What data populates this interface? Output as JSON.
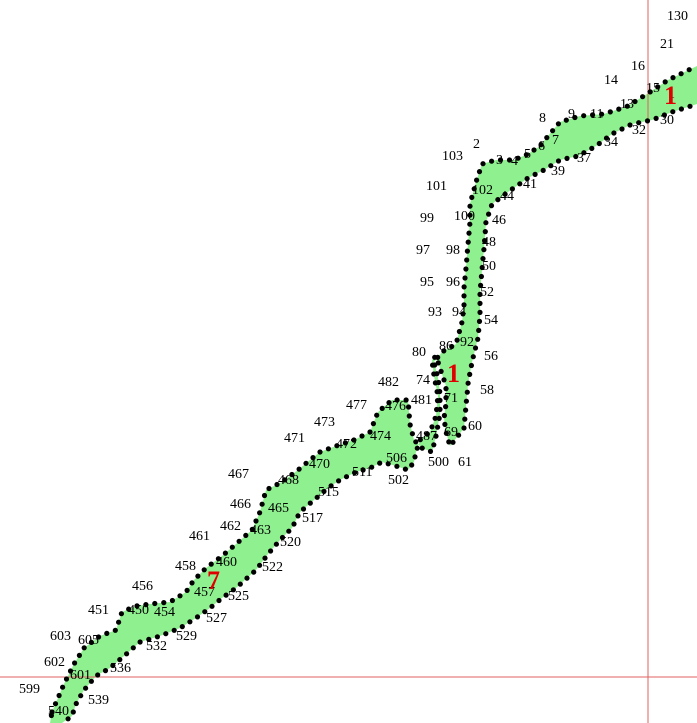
{
  "colors": {
    "region_fill": "#8ff08f",
    "guide_line": "#e06060",
    "point": "#000000",
    "marker": "#e00000"
  },
  "markers": [
    "1",
    "1",
    "7"
  ],
  "point_labels": [
    "130",
    "21",
    "16",
    "14",
    "15",
    "1",
    "30",
    "13",
    "11",
    "9",
    "8",
    "32",
    "34",
    "7",
    "6",
    "5",
    "4",
    "3",
    "2",
    "103",
    "37",
    "39",
    "41",
    "44",
    "102",
    "101",
    "100",
    "46",
    "99",
    "48",
    "98",
    "97",
    "50",
    "96",
    "95",
    "52",
    "94",
    "93",
    "54",
    "92",
    "86",
    "80",
    "56",
    "74",
    "58",
    "481",
    "482",
    "477",
    "476",
    "71",
    "473",
    "474",
    "472",
    "471",
    "487",
    "69",
    "60",
    "506",
    "500",
    "61",
    "470",
    "511",
    "502",
    "467",
    "468",
    "515",
    "466",
    "465",
    "517",
    "462",
    "463",
    "520",
    "461",
    "460",
    "458",
    "522",
    "457",
    "525",
    "456",
    "450",
    "454",
    "451",
    "527",
    "529",
    "603",
    "532",
    "605",
    "602",
    "536",
    "601",
    "599",
    "539",
    "540"
  ]
}
